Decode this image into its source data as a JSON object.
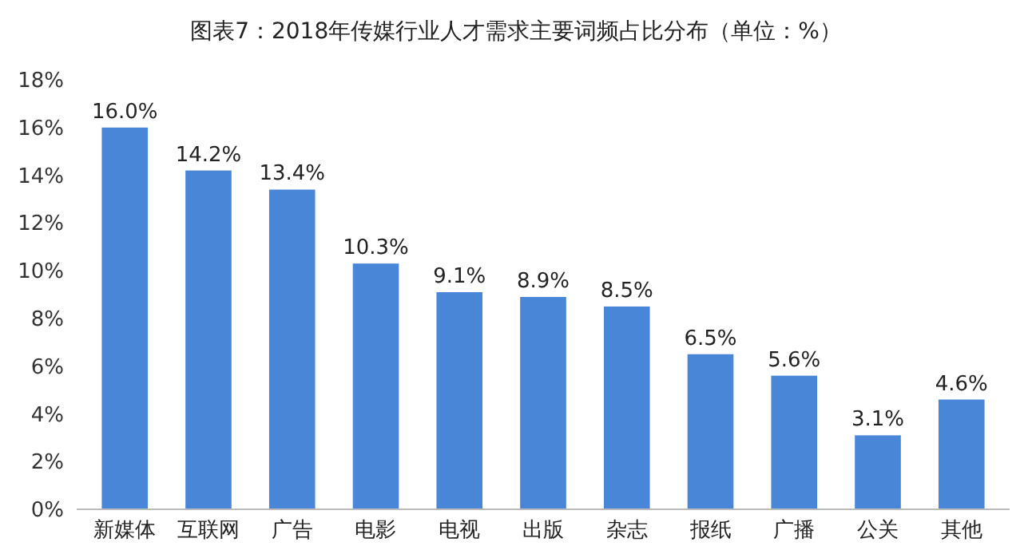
{
  "chart_data": {
    "type": "bar",
    "title": "图表7：2018年传媒行业人才需求主要词频占比分布（单位：%）",
    "categories": [
      "新媒体",
      "互联网",
      "广告",
      "电影",
      "电视",
      "出版",
      "杂志",
      "报纸",
      "广播",
      "公关",
      "其他"
    ],
    "values": [
      16.0,
      14.2,
      13.4,
      10.3,
      9.1,
      8.9,
      8.5,
      6.5,
      5.6,
      3.1,
      4.6
    ],
    "value_labels": [
      "16.0%",
      "14.2%",
      "13.4%",
      "10.3%",
      "9.1%",
      "8.9%",
      "8.5%",
      "6.5%",
      "5.6%",
      "3.1%",
      "4.6%"
    ],
    "color": "#4a86d8",
    "ylim": [
      0,
      18
    ],
    "yticks": [
      {
        "value": 0,
        "label": "0%"
      },
      {
        "value": 2,
        "label": "2%"
      },
      {
        "value": 4,
        "label": "4%"
      },
      {
        "value": 6,
        "label": "6%"
      },
      {
        "value": 8,
        "label": "8%"
      },
      {
        "value": 10,
        "label": "10%"
      },
      {
        "value": 12,
        "label": "12%"
      },
      {
        "value": 14,
        "label": "14%"
      },
      {
        "value": 16,
        "label": "16%"
      },
      {
        "value": 18,
        "label": "18%"
      }
    ],
    "grid": false
  }
}
